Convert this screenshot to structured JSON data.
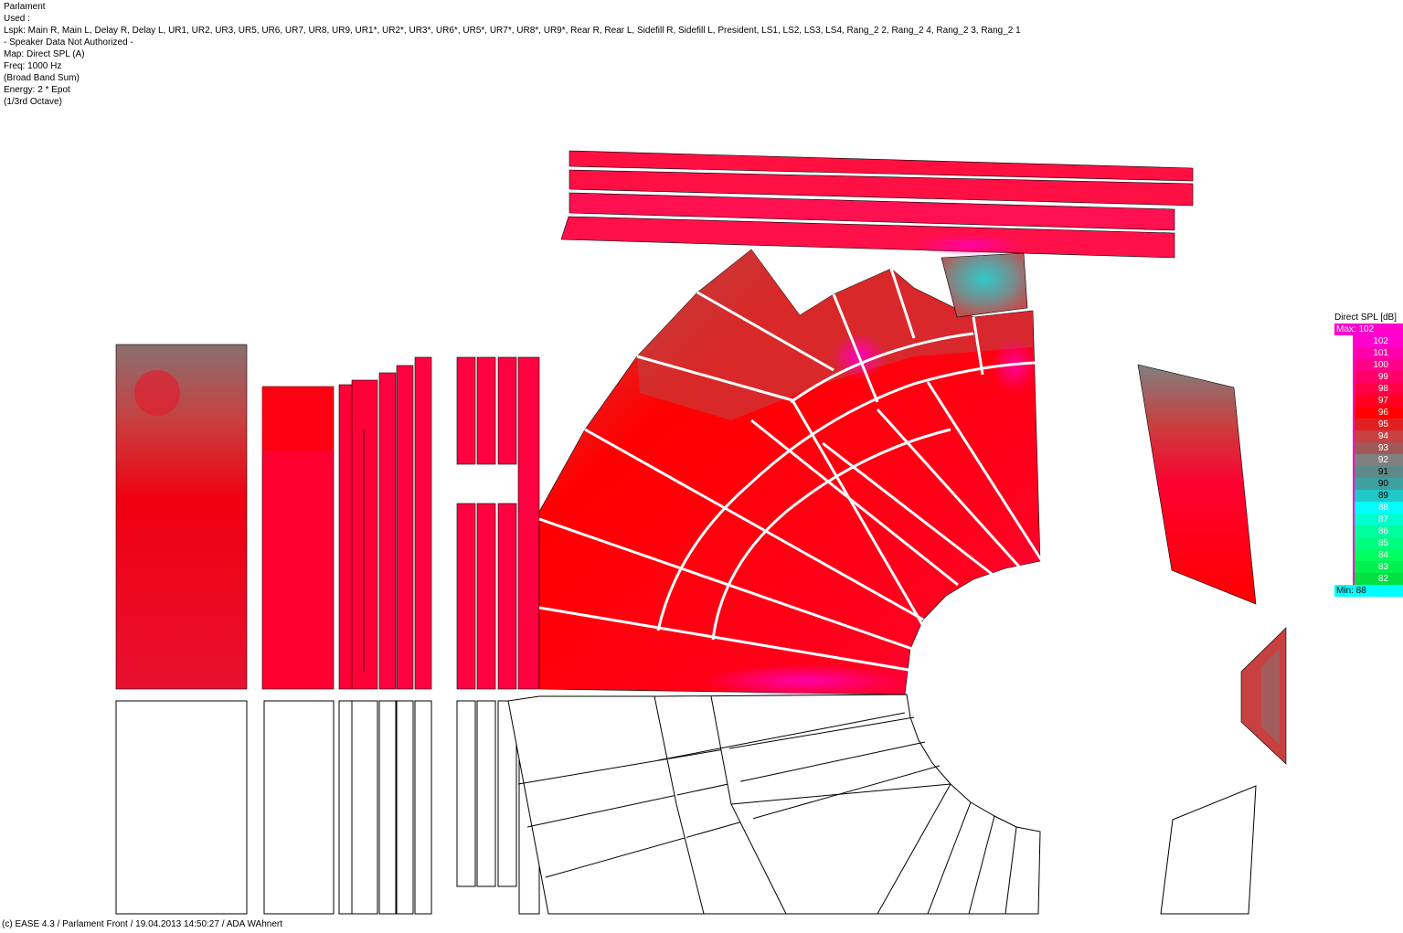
{
  "header": {
    "lines": [
      "Parlament",
      "Used :",
      "Lspk: Main R, Main L, Delay R, Delay L, UR1, UR2, UR3, UR5, UR6, UR7, UR8, UR9, UR1*, UR2*, UR3*, UR6*, UR5*, UR7*, UR8*, UR9*, Rear R, Rear L, Sidefill R, Sidefill L, President, LS1, LS2, LS3, LS4, Rang_2 2, Rang_2 4, Rang_2 3, Rang_2 1",
      "- Speaker Data Not Authorized -",
      "Map: Direct SPL (A)",
      "Freq: 1000 Hz",
      "(Broad Band Sum)",
      "Energy: 2 * Epot",
      "(1/3rd Octave)"
    ]
  },
  "footer": "(c) EASE 4.3  / Parlament Front / 19.04.2013 14:50:27 / ADA WAhnert",
  "legend": {
    "title": "Direct SPL [dB]",
    "max_label": "Max:  102",
    "min_label": "Min:  88",
    "max_color": "#ff00cc",
    "min_color": "#00ffff",
    "bar_color": "#ff00cc",
    "scale": [
      {
        "value": "102",
        "color": "#ff00cc",
        "text": "#ffffff"
      },
      {
        "value": "101",
        "color": "#ff00aa",
        "text": "#ffffff"
      },
      {
        "value": "100",
        "color": "#ff0088",
        "text": "#ffffff"
      },
      {
        "value": "99",
        "color": "#ff0066",
        "text": "#ffffff"
      },
      {
        "value": "98",
        "color": "#ff0044",
        "text": "#ffffff"
      },
      {
        "value": "97",
        "color": "#ff0022",
        "text": "#ffffff"
      },
      {
        "value": "96",
        "color": "#ff0000",
        "text": "#ffffff"
      },
      {
        "value": "95",
        "color": "#e02020",
        "text": "#ffffff"
      },
      {
        "value": "94",
        "color": "#c84040",
        "text": "#ffffff"
      },
      {
        "value": "93",
        "color": "#a05858",
        "text": "#ffffff"
      },
      {
        "value": "92",
        "color": "#808080",
        "text": "#ffffff"
      },
      {
        "value": "91",
        "color": "#608a8a",
        "text": "#000000"
      },
      {
        "value": "90",
        "color": "#40a0a0",
        "text": "#000000"
      },
      {
        "value": "89",
        "color": "#20c8c8",
        "text": "#000000"
      },
      {
        "value": "88",
        "color": "#00ffff",
        "text": "#ffffff"
      },
      {
        "value": "87",
        "color": "#00ffd0",
        "text": "#ffffff"
      },
      {
        "value": "86",
        "color": "#00ffa0",
        "text": "#ffffff"
      },
      {
        "value": "85",
        "color": "#00ff80",
        "text": "#ffffff"
      },
      {
        "value": "84",
        "color": "#00ff60",
        "text": "#ffffff"
      },
      {
        "value": "83",
        "color": "#00f050",
        "text": "#ffffff"
      },
      {
        "value": "82",
        "color": "#00e040",
        "text": "#ffffff"
      }
    ]
  }
}
